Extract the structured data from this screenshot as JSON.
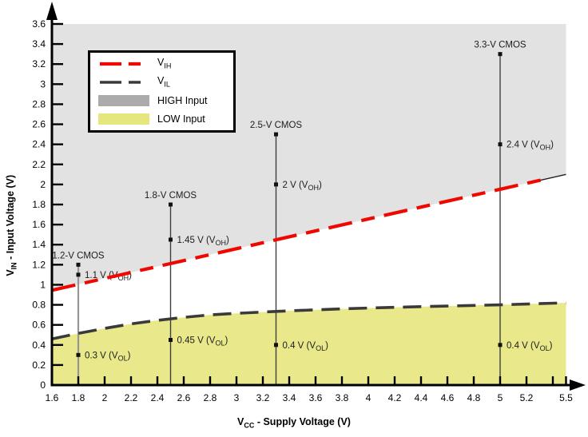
{
  "chart_data": {
    "type": "line",
    "title": "",
    "xlabel": {
      "pre": "V",
      "sub": "CC",
      "post": " - Supply Voltage (V)"
    },
    "ylabel": {
      "pre": "V",
      "sub": "IN",
      "post": " - Input Voltage (V)"
    },
    "xlim": [
      1.6,
      5.5
    ],
    "ylim": [
      0,
      3.6
    ],
    "grid": false,
    "legend_position": "upper-left",
    "xticks": {
      "values": [
        1.6,
        1.8,
        2,
        2.2,
        2.4,
        2.6,
        2.8,
        3,
        3.2,
        3.4,
        3.6,
        3.8,
        4,
        4.2,
        4.4,
        4.6,
        4.8,
        5,
        5.2,
        5.4,
        5.5
      ],
      "labels": [
        "1.6",
        "1.8",
        "2",
        "2.2",
        "2.4",
        "2.6",
        "2.8",
        "3",
        "3.2",
        "3.4",
        "3.6",
        "3.8",
        "4",
        "4.2",
        "4.4",
        "4.6",
        "4.8",
        "5",
        "5.2",
        "",
        "5.5"
      ]
    },
    "yticks": {
      "values": [
        0,
        0.2,
        0.4,
        0.6,
        0.8,
        1,
        1.2,
        1.4,
        1.6,
        1.8,
        2,
        2.2,
        2.4,
        2.6,
        2.8,
        3,
        3.2,
        3.4,
        3.6
      ],
      "labels": [
        "0",
        "0.2",
        "0.4",
        "0.6",
        "0.8",
        "1",
        "1.2",
        "1.4",
        "1.6",
        "1.8",
        "2",
        "2.2",
        "2.4",
        "2.6",
        "2.8",
        "3",
        "3.2",
        "3.4",
        "3.6"
      ]
    },
    "series": [
      {
        "name": "VIH",
        "label": {
          "pre": "V",
          "sub": "IH",
          "post": ""
        },
        "color": "#ee0800",
        "style": "dashed",
        "points": [
          [
            1.6,
            0.945
          ],
          [
            5.5,
            2.1
          ]
        ]
      },
      {
        "name": "VIL",
        "label": {
          "pre": "V",
          "sub": "IL",
          "post": ""
        },
        "color": "#3a3a3a",
        "style": "dashed",
        "points": [
          [
            1.6,
            0.46
          ],
          [
            1.8,
            0.515
          ],
          [
            2.0,
            0.565
          ],
          [
            2.2,
            0.61
          ],
          [
            2.4,
            0.645
          ],
          [
            2.6,
            0.675
          ],
          [
            2.8,
            0.7
          ],
          [
            3.0,
            0.715
          ],
          [
            3.2,
            0.728
          ],
          [
            3.4,
            0.74
          ],
          [
            3.6,
            0.75
          ],
          [
            3.8,
            0.76
          ],
          [
            4.0,
            0.768
          ],
          [
            4.2,
            0.775
          ],
          [
            4.4,
            0.782
          ],
          [
            4.6,
            0.788
          ],
          [
            4.8,
            0.794
          ],
          [
            5.0,
            0.8
          ],
          [
            5.2,
            0.808
          ],
          [
            5.5,
            0.82
          ]
        ]
      }
    ],
    "regions": [
      {
        "name": "HIGH Input",
        "fill": "#e2e2e2",
        "legend_color": "#ababab",
        "bound": "above VIH up to 3.6 V"
      },
      {
        "name": "LOW Input",
        "fill": "#e9e98c",
        "legend_color": "#e6e67e",
        "bound": "below VIL down to 0 V"
      }
    ],
    "legend": {
      "items": [
        {
          "type": "line",
          "color": "#ee0800",
          "label": {
            "pre": "V",
            "sub": "IH",
            "post": ""
          }
        },
        {
          "type": "line",
          "color": "#3a3a3a",
          "label": {
            "pre": "V",
            "sub": "IL",
            "post": ""
          }
        },
        {
          "type": "swatch",
          "color": "#ababab",
          "label": {
            "pre": "HIGH Input",
            "sub": "",
            "post": ""
          }
        },
        {
          "type": "swatch",
          "color": "#e6e67e",
          "label": {
            "pre": "LOW Input",
            "sub": "",
            "post": ""
          }
        }
      ]
    },
    "devices": [
      {
        "name": "1.2-V CMOS",
        "vcc": 1.8,
        "line_top": 1.2,
        "voh": 1.1,
        "vol": 0.3,
        "line_color": "#969696",
        "line_width": 2.2,
        "voh_label": {
          "pre": "1.1 V (V",
          "sub": "OH",
          "post": ")"
        },
        "vol_label": {
          "pre": "0.3 V (V",
          "sub": "OL",
          "post": ")"
        }
      },
      {
        "name": "1.8-V CMOS",
        "vcc": 2.5,
        "line_top": 1.8,
        "voh": 1.45,
        "vol": 0.45,
        "line_color": "#3f3f3f",
        "line_width": 1.4,
        "voh_label": {
          "pre": "1.45 V (V",
          "sub": "OH",
          "post": ")"
        },
        "vol_label": {
          "pre": "0.45 V (V",
          "sub": "OL",
          "post": ")"
        }
      },
      {
        "name": "2.5-V CMOS",
        "vcc": 3.3,
        "line_top": 2.5,
        "voh": 2,
        "vol": 0.4,
        "line_color": "#3f3f3f",
        "line_width": 1.4,
        "voh_label": {
          "pre": "2 V (V",
          "sub": "OH",
          "post": ")"
        },
        "vol_label": {
          "pre": "0.4 V (V",
          "sub": "OL",
          "post": ")"
        }
      },
      {
        "name": "3.3-V CMOS",
        "vcc": 5,
        "line_top": 3.3,
        "voh": 2.4,
        "vol": 0.4,
        "line_color": "#3f3f3f",
        "line_width": 1.4,
        "voh_label": {
          "pre": "2.4 V (V",
          "sub": "OH",
          "post": ")"
        },
        "vol_label": {
          "pre": "0.4 V (V",
          "sub": "OL",
          "post": ")"
        }
      }
    ]
  }
}
